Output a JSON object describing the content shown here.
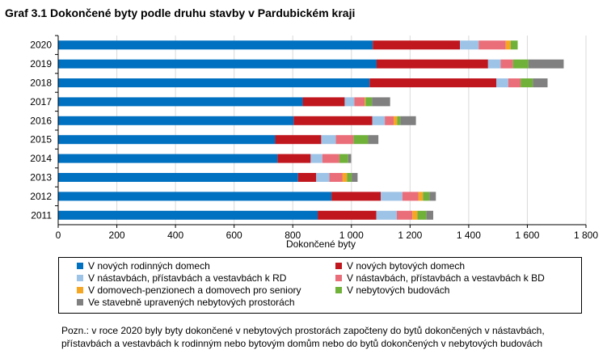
{
  "title": "Graf 3.1 Dokončené byty podle druhu stavby v Pardubickém kraji",
  "chart_data": {
    "type": "bar",
    "orientation": "horizontal",
    "stacked": true,
    "categories": [
      "2020",
      "2019",
      "2018",
      "2017",
      "2016",
      "2015",
      "2014",
      "2013",
      "2012",
      "2011"
    ],
    "series": [
      {
        "name": "V nových rodinných domech",
        "color": "#0070C0",
        "values": [
          1073,
          1086,
          1062,
          834,
          803,
          740,
          748,
          818,
          932,
          885
        ]
      },
      {
        "name": "V nových bytových domech",
        "color": "#C0161E",
        "values": [
          297,
          380,
          432,
          143,
          268,
          157,
          113,
          62,
          168,
          200
        ]
      },
      {
        "name": "V nástavbách, přístavbách a vestavbách k RD",
        "color": "#9DC3E6",
        "values": [
          64,
          43,
          41,
          33,
          43,
          50,
          40,
          45,
          74,
          70
        ]
      },
      {
        "name": "V nástavbách, přístavbách a vestavbách k BD",
        "color": "#EA6E7A",
        "values": [
          92,
          42,
          42,
          35,
          30,
          60,
          58,
          45,
          55,
          53
        ]
      },
      {
        "name": "V domovech-penzionech a domovech pro seniory",
        "color": "#F5A623",
        "values": [
          17,
          0,
          0,
          3,
          12,
          0,
          0,
          15,
          15,
          17
        ]
      },
      {
        "name": "V nebytových budovách",
        "color": "#70B13A",
        "values": [
          24,
          53,
          42,
          22,
          11,
          50,
          30,
          16,
          22,
          31
        ]
      },
      {
        "name": "Ve stavebně upravených nebytových prostorách",
        "color": "#808080",
        "values": [
          0,
          120,
          50,
          62,
          53,
          35,
          10,
          20,
          22,
          23
        ]
      }
    ],
    "xlabel": "Dokončené byty",
    "ylabel": "",
    "xlim": [
      0,
      1800
    ],
    "xticks": [
      0,
      200,
      400,
      600,
      800,
      1000,
      1200,
      1400,
      1600,
      1800
    ],
    "xtick_labels": [
      "0",
      "200",
      "400",
      "600",
      "800",
      "1 000",
      "1 200",
      "1 400",
      "1 600",
      "1 800"
    ],
    "grid": true,
    "legend_position": "bottom"
  },
  "note": "Pozn.: v roce 2020 byly byty dokončené v nebytových prostorách započteny do bytů dokončených v nástavbách, přístavbách a vestavbách k rodinným nebo bytovým domům nebo do bytů dokončených v nebytových budovách"
}
